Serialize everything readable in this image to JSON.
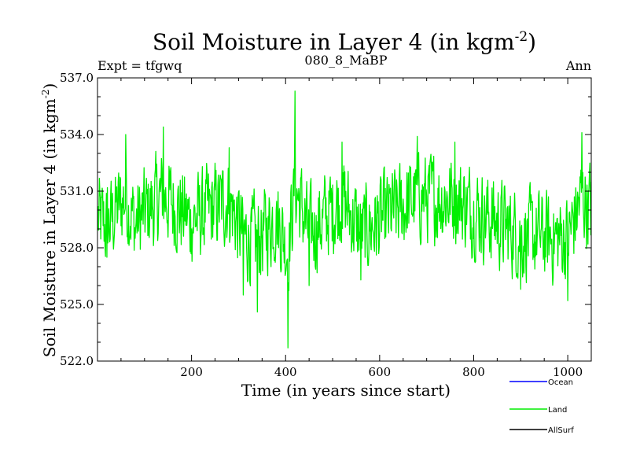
{
  "chart_data": {
    "type": "line",
    "title_main": "Soil Moisture in Layer 4 (in kgm",
    "title_sup": "-2",
    "title_close": ")",
    "subtitle_left": "Expt = tfgwq",
    "subtitle_center": "080_8_MaBP",
    "subtitle_right": "Ann",
    "xlabel": "Time (in years since start)",
    "ylabel_main": "Soil Moisture in Layer 4 (in kgm",
    "ylabel_sup": "-2",
    "ylabel_close": ")",
    "xlim": [
      0,
      1050
    ],
    "ylim": [
      522.0,
      537.0
    ],
    "x_ticks": [
      200,
      400,
      600,
      800,
      1000
    ],
    "x_tick_labels": [
      "200",
      "400",
      "600",
      "800",
      "1000"
    ],
    "y_ticks": [
      522.0,
      525.0,
      528.0,
      531.0,
      534.0,
      537.0
    ],
    "y_tick_labels": [
      "522.0",
      "525.0",
      "528.0",
      "531.0",
      "534.0",
      "537.0"
    ],
    "series": [
      {
        "name": "Land",
        "color": "#00ee00",
        "description": "annual values, years 1-1050, oscillating ~526-533 with spike to 536.3 near year 420 and dip to 522.7 near year 405",
        "key_points": [
          {
            "x": 0,
            "y": 529.5
          },
          {
            "x": 20,
            "y": 527.5
          },
          {
            "x": 40,
            "y": 531.0
          },
          {
            "x": 60,
            "y": 534.0
          },
          {
            "x": 80,
            "y": 528.5
          },
          {
            "x": 140,
            "y": 534.4
          },
          {
            "x": 200,
            "y": 529.0
          },
          {
            "x": 280,
            "y": 533.3
          },
          {
            "x": 310,
            "y": 525.5
          },
          {
            "x": 340,
            "y": 524.6
          },
          {
            "x": 380,
            "y": 530.0
          },
          {
            "x": 405,
            "y": 522.7
          },
          {
            "x": 420,
            "y": 536.3
          },
          {
            "x": 450,
            "y": 526.0
          },
          {
            "x": 520,
            "y": 533.6
          },
          {
            "x": 560,
            "y": 526.3
          },
          {
            "x": 680,
            "y": 533.9
          },
          {
            "x": 760,
            "y": 533.6
          },
          {
            "x": 900,
            "y": 525.8
          },
          {
            "x": 1000,
            "y": 525.2
          },
          {
            "x": 1030,
            "y": 534.1
          },
          {
            "x": 1050,
            "y": 531.5
          }
        ]
      },
      {
        "name": "Ocean",
        "color": "#0000ff",
        "values": []
      },
      {
        "name": "AllSurf",
        "color": "#000000",
        "values": []
      }
    ],
    "legend": {
      "placement": "bottom-right",
      "entries": [
        {
          "label": "Ocean",
          "color": "#0000ff"
        },
        {
          "label": "Land",
          "color": "#00ee00"
        },
        {
          "label": "AllSurf",
          "color": "#000000"
        }
      ]
    }
  }
}
